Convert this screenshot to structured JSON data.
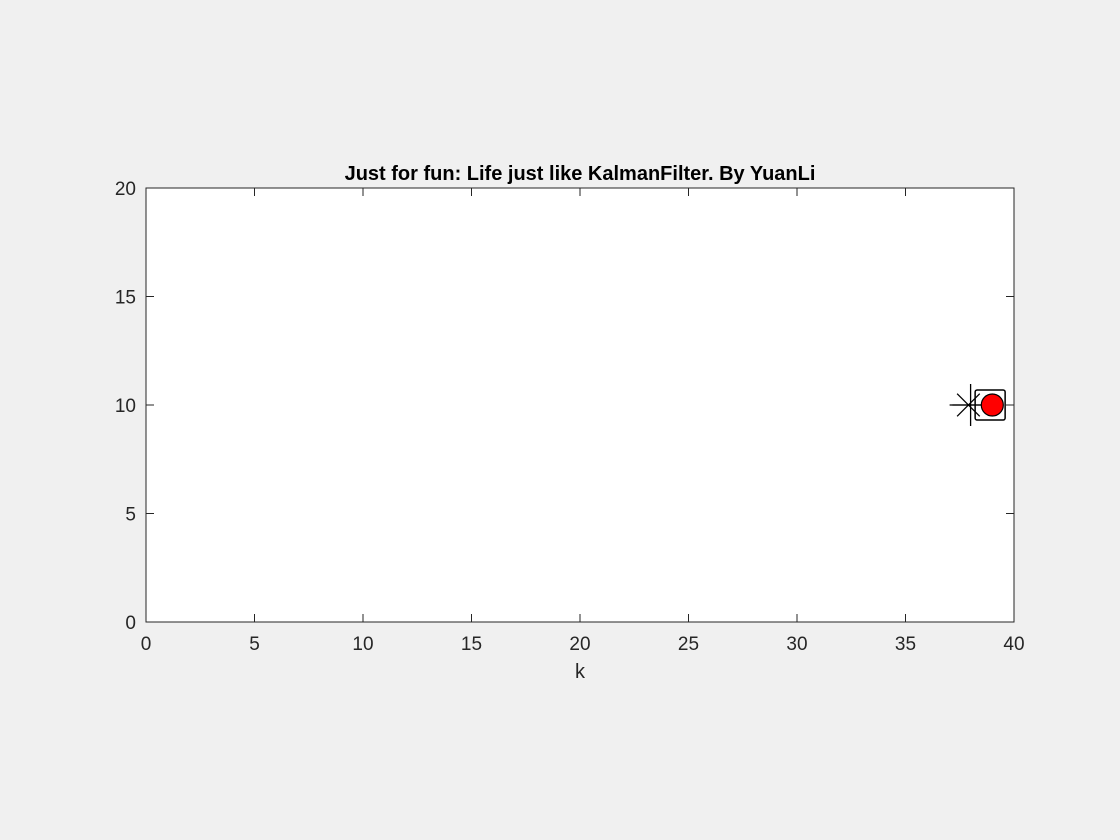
{
  "chart_data": {
    "type": "scatter",
    "title": "Just for fun: Life just like KalmanFilter. By YuanLi",
    "xlabel": "k",
    "ylabel": "",
    "xlim": [
      0,
      40
    ],
    "ylim": [
      0,
      20
    ],
    "xticks": [
      0,
      5,
      10,
      15,
      20,
      25,
      30,
      35,
      40
    ],
    "xtick_labels": [
      "0",
      "5",
      "10",
      "15",
      "20",
      "25",
      "30",
      "35",
      "40"
    ],
    "yticks": [
      0,
      5,
      10,
      15,
      20
    ],
    "ytick_labels": [
      "0",
      "5",
      "10",
      "15",
      "20"
    ],
    "grid": false,
    "series": [
      {
        "marker": "asterisk",
        "color": "#000000",
        "points": [
          [
            37.9,
            10
          ]
        ]
      },
      {
        "marker": "plus",
        "color": "#000000",
        "points": [
          [
            38.0,
            10
          ]
        ]
      },
      {
        "marker": "square",
        "color": "#000000",
        "points": [
          [
            38.9,
            10
          ]
        ]
      },
      {
        "marker": "filled-circle",
        "color": "#ff0000",
        "edge_color": "#000000",
        "points": [
          [
            39.0,
            10
          ]
        ]
      }
    ]
  },
  "colors": {
    "figure_background": "#f0f0f0",
    "axes_background": "#ffffff",
    "axes_color": "#262626",
    "marker_red": "#ff0000"
  }
}
